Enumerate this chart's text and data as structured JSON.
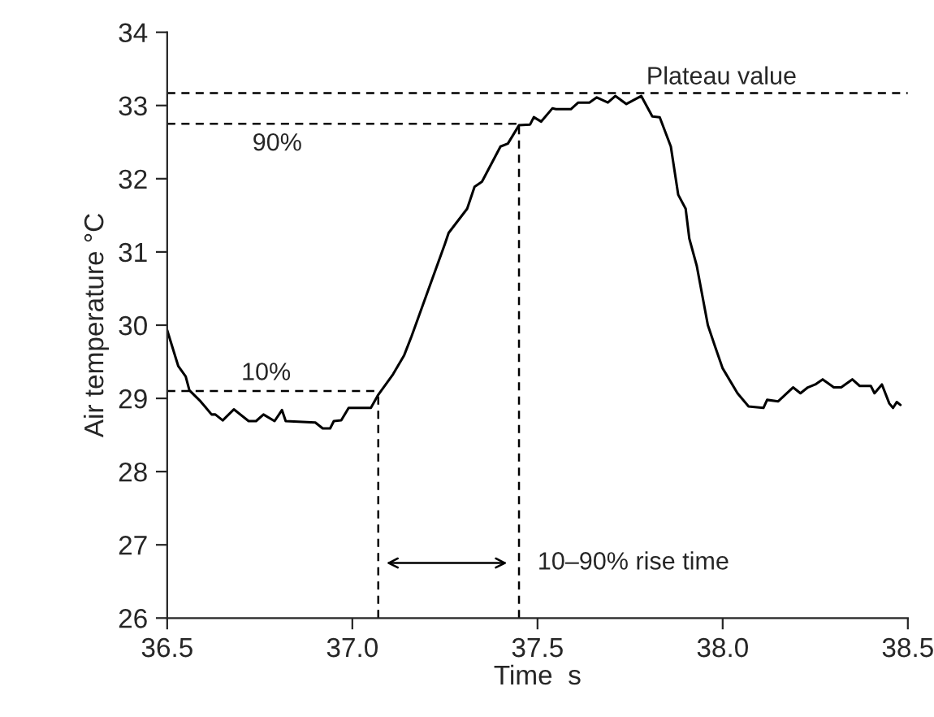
{
  "chart_data": {
    "type": "line",
    "xlabel": "Time  s",
    "ylabel": "Air temperature °C",
    "xlim": [
      36.5,
      38.5
    ],
    "xticks": [
      {
        "value": 36.5,
        "label": "36.5"
      },
      {
        "value": 37.0,
        "label": "37.0"
      },
      {
        "value": 37.5,
        "label": "37.5"
      },
      {
        "value": 38.0,
        "label": "38.0"
      },
      {
        "value": 38.5,
        "label": "38.5"
      }
    ],
    "ylim": [
      26,
      34
    ],
    "yticks": [
      26,
      27,
      28,
      29,
      30,
      31,
      32,
      33,
      34
    ],
    "grid": false,
    "legend": false,
    "marker": "none",
    "line_style": "solid",
    "series": [
      {
        "color": "#000000",
        "x": [
          36.5,
          36.53,
          36.55,
          36.56,
          36.59,
          36.62,
          36.63,
          36.65,
          36.68,
          36.72,
          36.74,
          36.76,
          36.79,
          36.81,
          36.82,
          36.9,
          36.92,
          36.94,
          36.95,
          36.97,
          36.99,
          37.05,
          37.07,
          37.11,
          37.14,
          37.16,
          37.2,
          37.25,
          37.26,
          37.31,
          37.33,
          37.35,
          37.4,
          37.42,
          37.45,
          37.48,
          37.49,
          37.51,
          37.54,
          37.55,
          37.59,
          37.61,
          37.64,
          37.66,
          37.69,
          37.71,
          37.74,
          37.78,
          37.81,
          37.83,
          37.86,
          37.88,
          37.9,
          37.91,
          37.93,
          37.96,
          37.98,
          38.0,
          38.04,
          38.07,
          38.11,
          38.12,
          38.15,
          38.19,
          38.21,
          38.23,
          38.25,
          38.27,
          38.3,
          38.32,
          38.35,
          38.37,
          38.4,
          38.41,
          38.43,
          38.45,
          38.46,
          38.47,
          38.48
        ],
        "values": [
          29.93,
          29.44,
          29.3,
          29.11,
          28.96,
          28.78,
          28.78,
          28.7,
          28.85,
          28.69,
          28.69,
          28.78,
          28.69,
          28.84,
          28.69,
          28.67,
          28.59,
          28.59,
          28.69,
          28.7,
          28.87,
          28.87,
          29.05,
          29.33,
          29.59,
          29.85,
          30.41,
          31.11,
          31.26,
          31.59,
          31.89,
          31.96,
          32.44,
          32.48,
          32.73,
          32.74,
          32.84,
          32.78,
          32.96,
          32.95,
          32.95,
          33.04,
          33.04,
          33.11,
          33.04,
          33.13,
          33.02,
          33.13,
          32.85,
          32.84,
          32.44,
          31.78,
          31.59,
          31.18,
          30.81,
          30.0,
          29.7,
          29.41,
          29.07,
          28.89,
          28.87,
          28.98,
          28.96,
          29.15,
          29.07,
          29.15,
          29.19,
          29.26,
          29.15,
          29.15,
          29.26,
          29.17,
          29.17,
          29.07,
          29.19,
          28.93,
          28.87,
          28.95,
          28.91
        ]
      }
    ],
    "ref_lines": [
      {
        "axis": "y",
        "value": 29.1,
        "line_style": "dashed",
        "color": "#000000"
      },
      {
        "axis": "y",
        "value": 32.75,
        "line_style": "dashed",
        "color": "#000000"
      },
      {
        "axis": "y",
        "value": 33.17,
        "label": "Plateau value",
        "line_style": "dashed",
        "color": "#000000"
      },
      {
        "axis": "x",
        "value": 37.07,
        "line_style": "dashed",
        "color": "#000000"
      },
      {
        "axis": "x",
        "value": 37.45,
        "line_style": "dashed",
        "color": "#000000"
      }
    ],
    "annotations": [
      "10%",
      "90%",
      "10–90% rise time"
    ]
  }
}
